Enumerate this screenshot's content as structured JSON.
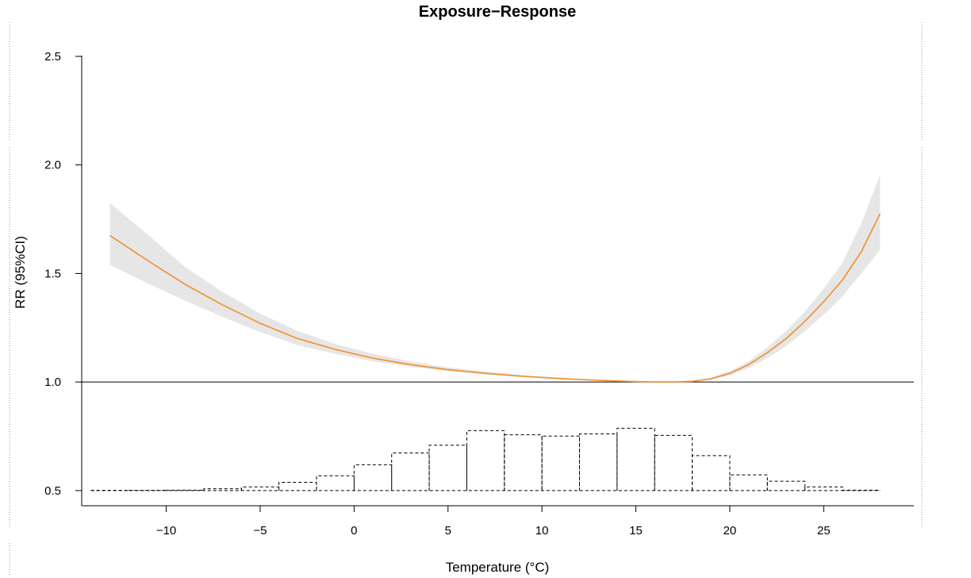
{
  "chart_data": {
    "type": "line",
    "title": "Exposure−Response",
    "xlabel": "Temperature (°C)",
    "ylabel": "RR (95%CI)",
    "xlim": [
      -14.5,
      29.8
    ],
    "ylim": [
      0.43,
      2.65
    ],
    "x_ticks": [
      -10,
      -5,
      0,
      5,
      10,
      15,
      20,
      25
    ],
    "x_tick_labels": [
      "−10",
      "−5",
      "0",
      "5",
      "10",
      "15",
      "20",
      "25"
    ],
    "y_ticks": [
      0.5,
      1.0,
      1.5,
      2.0,
      2.5
    ],
    "y_tick_labels": [
      "0.5",
      "1.0",
      "1.5",
      "2.0",
      "2.5"
    ],
    "reference_line": 1.0,
    "colors": {
      "line": "#f28e2b",
      "band": "#e6e6e6",
      "reference": "#000000",
      "histogram": "#000000"
    },
    "series": [
      {
        "type": "line",
        "x": [
          -13,
          -11,
          -9,
          -7,
          -5,
          -3,
          -1,
          1,
          3,
          5,
          7,
          9,
          11,
          13,
          15,
          16,
          17,
          18,
          19,
          20,
          21,
          22,
          23,
          24,
          25,
          26,
          27,
          28
        ],
        "y": [
          1.675,
          1.56,
          1.45,
          1.355,
          1.27,
          1.2,
          1.15,
          1.11,
          1.08,
          1.057,
          1.04,
          1.026,
          1.016,
          1.008,
          1.002,
          1.0,
          1.0,
          1.003,
          1.015,
          1.04,
          1.08,
          1.135,
          1.2,
          1.28,
          1.37,
          1.47,
          1.6,
          1.775
        ],
        "lower": [
          1.54,
          1.455,
          1.375,
          1.3,
          1.23,
          1.17,
          1.13,
          1.095,
          1.07,
          1.05,
          1.035,
          1.022,
          1.013,
          1.006,
          1.001,
          1.0,
          1.0,
          1.002,
          1.01,
          1.03,
          1.065,
          1.11,
          1.165,
          1.235,
          1.31,
          1.395,
          1.5,
          1.61
        ],
        "upper": [
          1.825,
          1.68,
          1.53,
          1.415,
          1.315,
          1.235,
          1.175,
          1.13,
          1.095,
          1.068,
          1.048,
          1.032,
          1.02,
          1.01,
          1.003,
          1.0,
          1.0,
          1.004,
          1.02,
          1.05,
          1.095,
          1.16,
          1.235,
          1.325,
          1.43,
          1.55,
          1.73,
          1.955
        ]
      },
      {
        "type": "histogram",
        "baseline": 0.5,
        "bin_edges": [
          -14,
          -12,
          -10,
          -8,
          -6,
          -4,
          -2,
          0,
          2,
          4,
          6,
          8,
          10,
          12,
          14,
          16,
          18,
          20,
          22,
          24,
          26,
          28
        ],
        "values": [
          0.501,
          0.501,
          0.502,
          0.508,
          0.517,
          0.538,
          0.568,
          0.619,
          0.673,
          0.709,
          0.776,
          0.757,
          0.751,
          0.761,
          0.787,
          0.754,
          0.661,
          0.572,
          0.543,
          0.517,
          0.502
        ]
      }
    ]
  }
}
